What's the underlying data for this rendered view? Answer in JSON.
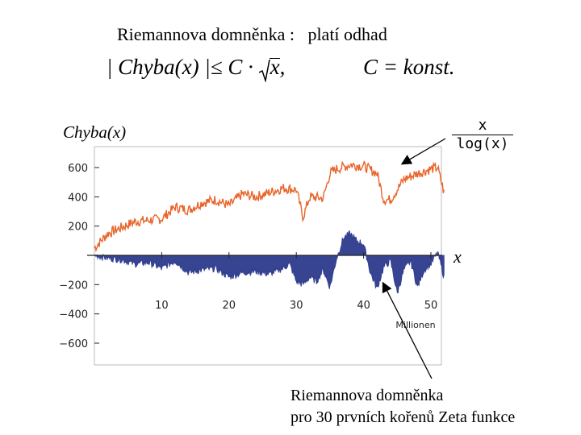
{
  "slide": {
    "title": "Riemannova domněnka :   platí odhad",
    "formula_left": "| Chyba(x) |≤ C ·",
    "formula_sqrt": "x",
    "formula_comma": ",",
    "formula_right": "C = konst.",
    "ylabel": "Chyba(x)",
    "frac_num": "x",
    "frac_den": "log(x)",
    "xlabel": "x",
    "note_line1": "Riemannova domněnka",
    "note_line2": "pro 30 prvních kořenů Zeta funkce"
  },
  "chart_data": {
    "type": "line",
    "xlabel": "Millionen",
    "ylim": [
      -700,
      700
    ],
    "xlim": [
      0,
      52
    ],
    "y_ticks": [
      600,
      400,
      200,
      -200,
      -400,
      -600
    ],
    "y_tick_labels": [
      "600",
      "400",
      "200",
      "−200",
      "−400",
      "−600"
    ],
    "x_ticks": [
      10,
      20,
      30,
      40,
      50
    ],
    "x_tick_labels": [
      "10",
      "20",
      "30",
      "40",
      "50"
    ],
    "series": [
      {
        "color": "#e8642a",
        "x": [
          0,
          2,
          4,
          6,
          8,
          10,
          12,
          14,
          16,
          18,
          20,
          22,
          24,
          26,
          28,
          30,
          31,
          32,
          34,
          35,
          36,
          38,
          40,
          42,
          43,
          44,
          46,
          48,
          50,
          51,
          52
        ],
        "y": [
          50,
          150,
          190,
          230,
          240,
          250,
          330,
          310,
          360,
          380,
          340,
          420,
          400,
          430,
          460,
          450,
          260,
          400,
          390,
          560,
          590,
          620,
          610,
          560,
          380,
          380,
          520,
          560,
          590,
          600,
          420
        ]
      },
      {
        "color": "#2c3a8c",
        "x": [
          0,
          2,
          4,
          6,
          8,
          10,
          12,
          14,
          16,
          18,
          20,
          22,
          24,
          26,
          28,
          29,
          30,
          31,
          32,
          33,
          34,
          35,
          36,
          37,
          38,
          39,
          40,
          41,
          42,
          43,
          44,
          45,
          46,
          47,
          48,
          49,
          50,
          51,
          52
        ],
        "y": [
          0,
          -20,
          -30,
          -60,
          -50,
          -90,
          -40,
          -120,
          -100,
          -90,
          -150,
          -120,
          -110,
          -130,
          -90,
          -60,
          -180,
          -200,
          -150,
          -180,
          -100,
          -220,
          -20,
          120,
          150,
          100,
          80,
          -120,
          -230,
          -80,
          -40,
          -260,
          -100,
          -40,
          -220,
          -100,
          -60,
          20,
          -160
        ]
      }
    ]
  }
}
